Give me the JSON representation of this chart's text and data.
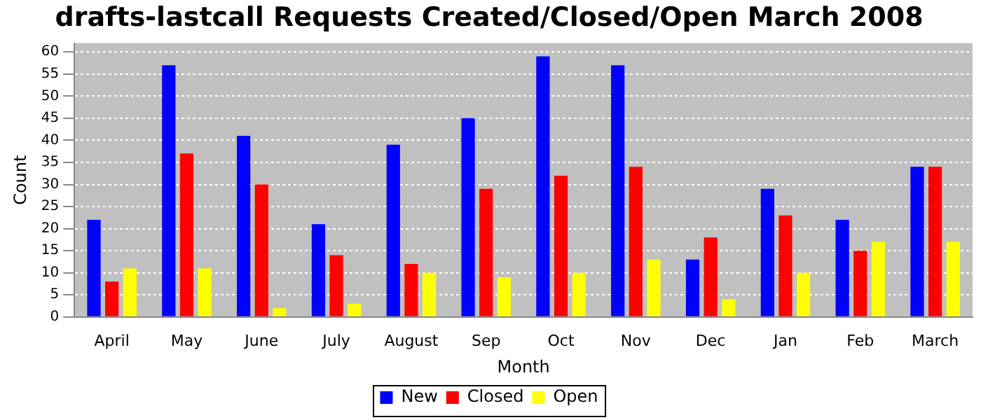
{
  "chart_data": {
    "type": "bar",
    "title": "drafts-lastcall Requests Created/Closed/Open March 2008",
    "xlabel": "Month",
    "ylabel": "Count",
    "categories": [
      "April",
      "May",
      "June",
      "July",
      "August",
      "Sep",
      "Oct",
      "Nov",
      "Dec",
      "Jan",
      "Feb",
      "March"
    ],
    "series": [
      {
        "name": "New",
        "color": "#0000ff",
        "values": [
          22,
          57,
          41,
          21,
          39,
          45,
          59,
          57,
          13,
          29,
          22,
          34
        ]
      },
      {
        "name": "Closed",
        "color": "#ff0000",
        "values": [
          8,
          37,
          30,
          14,
          12,
          29,
          32,
          34,
          18,
          23,
          15,
          34
        ]
      },
      {
        "name": "Open",
        "color": "#ffff00",
        "values": [
          11,
          11,
          2,
          3,
          10,
          9,
          10,
          13,
          4,
          10,
          17,
          17
        ]
      }
    ],
    "ylim": [
      0,
      62
    ],
    "yticks": [
      0,
      5,
      10,
      15,
      20,
      25,
      30,
      35,
      40,
      45,
      50,
      55,
      60
    ],
    "grid": "y",
    "legend": "bottom"
  }
}
